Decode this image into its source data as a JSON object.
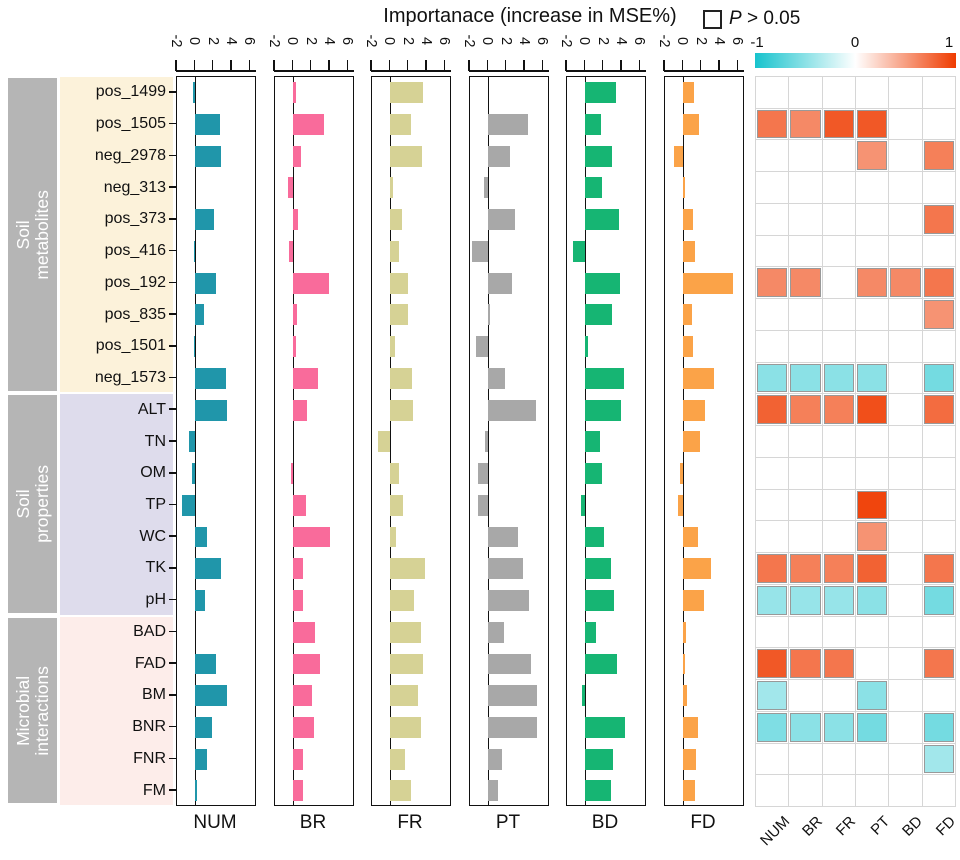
{
  "title": "Importanace (increase in MSE%)",
  "legend": {
    "p": "P",
    "condition": " > 0.05"
  },
  "colorbar": {
    "ticks": [
      "-1",
      "0",
      "1"
    ],
    "negative_color": "#17c3cd",
    "positive_color": "#ef3b00"
  },
  "axis": {
    "ticks": [
      "-2",
      "0",
      "2",
      "4",
      "6"
    ]
  },
  "groups": [
    {
      "label": "Soil metabolites",
      "bg": "#fcf2da",
      "rows": [
        "pos_1499",
        "pos_1505",
        "neg_2978",
        "neg_313",
        "pos_373",
        "pos_416",
        "pos_192",
        "pos_835",
        "pos_1501",
        "neg_1573"
      ]
    },
    {
      "label": "Soil properties",
      "bg": "#dedcec",
      "rows": [
        "ALT",
        "TN",
        "OM",
        "TP",
        "WC",
        "TK",
        "pH"
      ]
    },
    {
      "label": "Microbial interactions",
      "bg": "#fdedea",
      "rows": [
        "BAD",
        "FAD",
        "BM",
        "BNR",
        "FNR",
        "FM"
      ]
    }
  ],
  "chart_data": {
    "type": "bar",
    "title": "Importanace (increase in MSE%)",
    "xlabel": "Importanace (increase in MSE%)",
    "xlim": [
      -2,
      6.5
    ],
    "x_ticks": [
      -2,
      0,
      2,
      4,
      6
    ],
    "categories": [
      "pos_1499",
      "pos_1505",
      "neg_2978",
      "neg_313",
      "pos_373",
      "pos_416",
      "pos_192",
      "pos_835",
      "pos_1501",
      "neg_1573",
      "ALT",
      "TN",
      "OM",
      "TP",
      "WC",
      "TK",
      "pH",
      "BAD",
      "FAD",
      "BM",
      "BNR",
      "FNR",
      "FM"
    ],
    "series": [
      {
        "name": "NUM",
        "color": "#2096aa",
        "values": [
          -0.3,
          2.7,
          2.8,
          0,
          2.0,
          -0.2,
          2.2,
          0.9,
          -0.2,
          3.3,
          3.5,
          -0.7,
          -0.4,
          -1.5,
          1.3,
          2.8,
          1.1,
          0,
          2.2,
          3.5,
          1.8,
          1.3,
          0.15
        ]
      },
      {
        "name": "BR",
        "color": "#f96b9b",
        "values": [
          0.3,
          3.3,
          0.8,
          -0.6,
          0.5,
          -0.5,
          3.9,
          0.45,
          0.25,
          2.7,
          1.5,
          0,
          -0.3,
          1.4,
          4.0,
          1.0,
          1.0,
          2.4,
          2.9,
          2.0,
          2.3,
          1.0,
          1.0
        ]
      },
      {
        "name": "FR",
        "color": "#d6d295",
        "values": [
          3.6,
          2.2,
          3.5,
          0.25,
          1.3,
          0.9,
          1.9,
          1.9,
          0.5,
          2.4,
          2.5,
          -1.3,
          0.9,
          1.4,
          0.6,
          3.75,
          2.6,
          3.3,
          3.6,
          3.0,
          3.3,
          1.6,
          2.3
        ]
      },
      {
        "name": "PT",
        "color": "#a8a8a8",
        "values": [
          0,
          4.3,
          2.4,
          -0.5,
          2.9,
          -1.8,
          2.6,
          0.2,
          -1.3,
          1.85,
          5.2,
          -0.35,
          -1.1,
          -1.1,
          3.2,
          3.8,
          4.4,
          1.75,
          4.7,
          5.3,
          5.3,
          1.5,
          1.1
        ]
      },
      {
        "name": "BD",
        "color": "#16b573",
        "values": [
          3.3,
          1.75,
          2.9,
          1.8,
          3.7,
          -1.3,
          3.75,
          2.9,
          0.25,
          4.2,
          3.9,
          1.6,
          1.85,
          -0.5,
          2.0,
          2.8,
          3.1,
          1.15,
          3.4,
          -0.4,
          4.3,
          3.0,
          2.8
        ]
      },
      {
        "name": "FD",
        "color": "#fba348",
        "values": [
          1.2,
          1.7,
          -1.0,
          0.1,
          1.1,
          1.3,
          5.4,
          0.95,
          1.05,
          3.3,
          2.4,
          1.8,
          -0.35,
          -0.6,
          1.6,
          3.0,
          2.2,
          0.25,
          0.2,
          0.4,
          1.6,
          1.4,
          1.3
        ]
      }
    ],
    "heatmap": {
      "type": "heatmap",
      "columns": [
        "NUM",
        "BR",
        "FR",
        "PT",
        "BD",
        "FD"
      ],
      "scale": {
        "min": -1,
        "max": 1,
        "white_means": "P > 0.05"
      },
      "values": [
        [
          null,
          null,
          null,
          null,
          null,
          null
        ],
        [
          0.7,
          0.6,
          0.85,
          0.85,
          null,
          null
        ],
        [
          null,
          null,
          null,
          0.55,
          null,
          0.65
        ],
        [
          null,
          null,
          null,
          null,
          null,
          null
        ],
        [
          null,
          null,
          null,
          null,
          null,
          0.7
        ],
        [
          null,
          null,
          null,
          null,
          null,
          null
        ],
        [
          0.6,
          0.6,
          null,
          0.6,
          0.6,
          0.7
        ],
        [
          null,
          null,
          null,
          null,
          null,
          0.55
        ],
        [
          null,
          null,
          null,
          null,
          null,
          null
        ],
        [
          -0.5,
          -0.5,
          -0.5,
          -0.5,
          null,
          -0.6
        ],
        [
          0.8,
          0.65,
          0.65,
          0.9,
          null,
          0.75
        ],
        [
          null,
          null,
          null,
          null,
          null,
          null
        ],
        [
          null,
          null,
          null,
          null,
          null,
          null
        ],
        [
          null,
          null,
          null,
          0.95,
          null,
          null
        ],
        [
          null,
          null,
          null,
          0.55,
          null,
          null
        ],
        [
          0.7,
          0.65,
          0.65,
          0.8,
          null,
          0.7
        ],
        [
          -0.45,
          -0.45,
          -0.45,
          -0.5,
          null,
          -0.6
        ],
        [
          null,
          null,
          null,
          null,
          null,
          null
        ],
        [
          0.85,
          0.7,
          0.7,
          null,
          null,
          0.7
        ],
        [
          -0.4,
          null,
          null,
          -0.5,
          null,
          null
        ],
        [
          -0.55,
          -0.5,
          -0.5,
          -0.6,
          null,
          -0.6
        ],
        [
          null,
          null,
          null,
          null,
          null,
          -0.4
        ],
        [
          null,
          null,
          null,
          null,
          null,
          null
        ]
      ]
    }
  }
}
